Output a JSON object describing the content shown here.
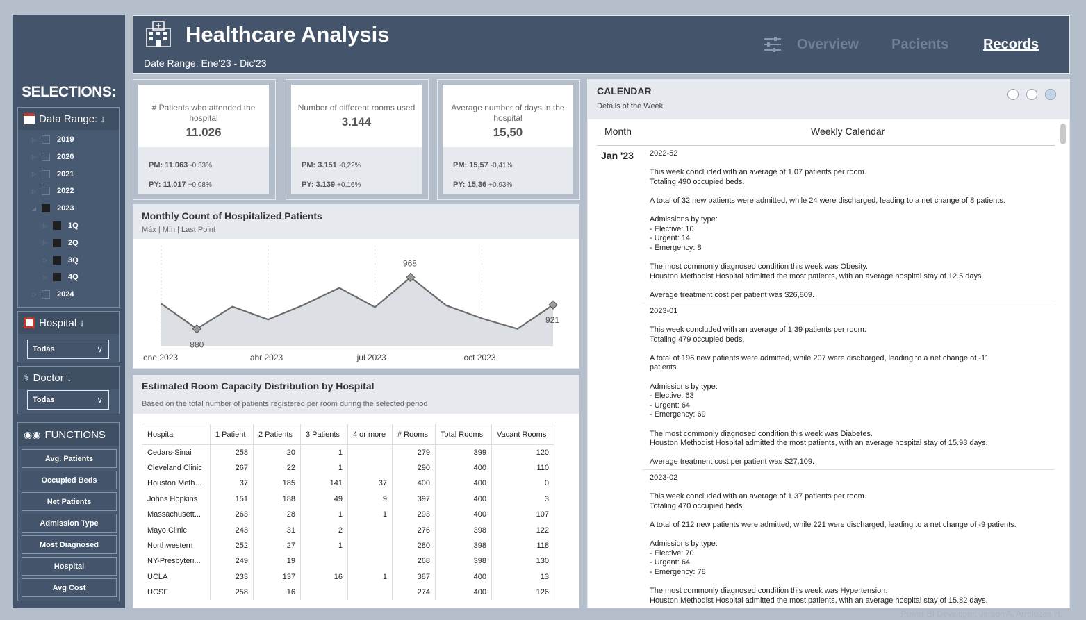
{
  "sidebar": {
    "title": "SELECTIONS:",
    "date_range": {
      "label": "Data Range: ↓",
      "items": [
        {
          "label": "2019",
          "checked": false,
          "level": 0
        },
        {
          "label": "2020",
          "checked": false,
          "level": 0
        },
        {
          "label": "2021",
          "checked": false,
          "level": 0
        },
        {
          "label": "2022",
          "checked": false,
          "level": 0
        },
        {
          "label": "2023",
          "checked": true,
          "level": 0
        },
        {
          "label": "1Q",
          "checked": true,
          "level": 1
        },
        {
          "label": "2Q",
          "checked": true,
          "level": 1
        },
        {
          "label": "3Q",
          "checked": true,
          "level": 1
        },
        {
          "label": "4Q",
          "checked": true,
          "level": 1
        },
        {
          "label": "2024",
          "checked": false,
          "level": 0
        }
      ]
    },
    "hospital": {
      "label": "Hospital ↓",
      "value": "Todas"
    },
    "doctor": {
      "label": "Doctor ↓",
      "value": "Todas"
    },
    "functions": {
      "label": "FUNCTIONS",
      "buttons": [
        "Avg. Patients",
        "Occupied Beds",
        "Net Patients",
        "Admission Type",
        "Most Diagnosed",
        "Hospital",
        "Avg Cost"
      ]
    }
  },
  "header": {
    "title": "Healthcare Analysis",
    "date_range": "Date Range: Ene'23 - Dic'23",
    "nav": [
      "Overview",
      "Pacients",
      "Records"
    ]
  },
  "kpis": [
    {
      "label": "# Patients who attended the hospital",
      "value": "11.026",
      "pm_label": "PM: 11.063",
      "pm_delta": "-0,33%",
      "py_label": "PY: 11.017",
      "py_delta": "+0,08%"
    },
    {
      "label": "Number of different rooms used",
      "value": "3.144",
      "pm_label": "PM: 3.151",
      "pm_delta": "-0,22%",
      "py_label": "PY: 3.139",
      "py_delta": "+0,16%"
    },
    {
      "label": "Average number of days in the hospital",
      "value": "15,50",
      "pm_label": "PM: 15,57",
      "pm_delta": "-0,41%",
      "py_label": "PY: 15,36",
      "py_delta": "+0,93%"
    }
  ],
  "chart_data": {
    "type": "area",
    "title": "Monthly Count of Hospitalized Patients",
    "subtitle": "Máx | Mín | Last Point",
    "x": [
      "ene 2023",
      "feb 2023",
      "mar 2023",
      "abr 2023",
      "may 2023",
      "jun 2023",
      "jul 2023",
      "ago 2023",
      "sep 2023",
      "oct 2023",
      "nov 2023",
      "dic 2023"
    ],
    "tick_labels": [
      "ene 2023",
      "abr 2023",
      "jul 2023",
      "oct 2023"
    ],
    "values": [
      923,
      880,
      918,
      896,
      921,
      950,
      917,
      968,
      920,
      898,
      880,
      921
    ],
    "ylim": [
      850,
      1010
    ],
    "annotations": [
      {
        "index": 1,
        "label": "880"
      },
      {
        "index": 7,
        "label": "968"
      },
      {
        "index": 11,
        "label": "921"
      }
    ],
    "color": "#6b6b6b",
    "fill": "#dcdfe4"
  },
  "capacity": {
    "title": "Estimated Room Capacity Distribution by Hospital",
    "subtitle": "Based on the total number of patients registered per room during the selected period",
    "columns": [
      "Hospital",
      "1 Patient",
      "2 Patients",
      "3 Patients",
      "4 or more",
      "# Rooms",
      "Total Rooms",
      "Vacant Rooms"
    ],
    "rows": [
      [
        "Cedars-Sinai",
        "258",
        "20",
        "1",
        "",
        "279",
        "399",
        "120"
      ],
      [
        "Cleveland Clinic",
        "267",
        "22",
        "1",
        "",
        "290",
        "400",
        "110"
      ],
      [
        "Houston Meth...",
        "37",
        "185",
        "141",
        "37",
        "400",
        "400",
        "0"
      ],
      [
        "Johns Hopkins",
        "151",
        "188",
        "49",
        "9",
        "397",
        "400",
        "3"
      ],
      [
        "Massachusett...",
        "263",
        "28",
        "1",
        "1",
        "293",
        "400",
        "107"
      ],
      [
        "Mayo Clinic",
        "243",
        "31",
        "2",
        "",
        "276",
        "398",
        "122"
      ],
      [
        "Northwestern",
        "252",
        "27",
        "1",
        "",
        "280",
        "398",
        "118"
      ],
      [
        "NY-Presbyteri...",
        "249",
        "19",
        "",
        "",
        "268",
        "398",
        "130"
      ],
      [
        "UCLA",
        "233",
        "137",
        "16",
        "1",
        "387",
        "400",
        "13"
      ],
      [
        "UCSF",
        "258",
        "16",
        "",
        "",
        "274",
        "400",
        "126"
      ]
    ]
  },
  "calendar": {
    "title": "CALENDAR",
    "subtitle": "Details of the Week",
    "col_month": "Month",
    "col_week": "Weekly Calendar",
    "month": "Jan '23",
    "weeks": [
      {
        "id": "2022-52",
        "lines": [
          "This week concluded with an average of 1.07 patients per room.",
          "Totaling 490 occupied beds.",
          "",
          "A total of 32 new patients were admitted, while 24 were discharged, leading to a net change of 8 patients.",
          "",
          "Admissions by type:",
          "- Elective: 10",
          "- Urgent: 14",
          "- Emergency: 8",
          "",
          "The most commonly diagnosed condition this week was Obesity.",
          "Houston Methodist Hospital admitted the most patients, with an average hospital stay of 12.5 days.",
          "",
          "Average treatment cost per patient was $26,809."
        ]
      },
      {
        "id": "2023-01",
        "lines": [
          "This week concluded with an average of 1.39 patients per room.",
          "Totaling 479 occupied beds.",
          "",
          "A total of 196 new patients were admitted, while 207 were discharged, leading to a net change of -11",
          "patients.",
          "",
          "Admissions by type:",
          "- Elective: 63",
          "- Urgent: 64",
          "- Emergency: 69",
          "",
          "The most commonly diagnosed condition this week was Diabetes.",
          "Houston Methodist Hospital admitted the most patients, with an average hospital stay of 15.93 days.",
          "",
          "Average treatment cost per patient was $27,109."
        ]
      },
      {
        "id": "2023-02",
        "lines": [
          "This week concluded with an average of 1.37 patients per room.",
          "Totaling 470 occupied beds.",
          "",
          "A total of 212 new patients were admitted, while 221 were discharged, leading to a net change of -9 patients.",
          "",
          "Admissions by type:",
          "- Elective: 70",
          "- Urgent: 64",
          "- Emergency: 78",
          "",
          "The most commonly diagnosed condition this week was Hypertension.",
          "Houston Methodist Hospital admitted the most patients, with an average hospital stay of 15.82 days."
        ]
      }
    ]
  },
  "credit": "Power BI Developer: Jerson A. Arreluzea H.",
  "colors": {
    "primary": "#44546a",
    "background": "#b5bfcc",
    "panel": "#e6e9ee",
    "accent": "#c0392b"
  }
}
